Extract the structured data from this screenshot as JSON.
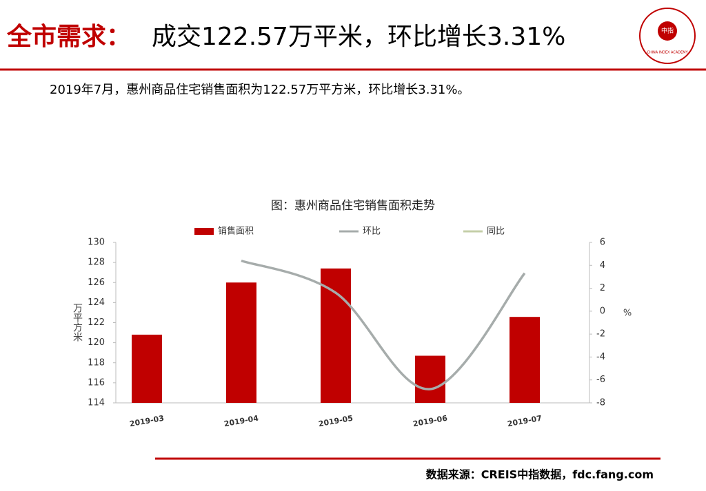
{
  "header": {
    "title_prefix": "全市需求：",
    "title_main": "成交122.57万平米，环比增长3.31%",
    "logo_text": "中指",
    "logo_caption": "CHINA INDEX ACADEMY"
  },
  "subtitle": "2019年7月，惠州商品住宅销售面积为122.57万平方米，环比增长3.31%。",
  "chart_data": {
    "type": "bar_line",
    "title": "图：惠州商品住宅销售面积走势",
    "categories": [
      "2019-03",
      "2019-04",
      "2019-05",
      "2019-06",
      "2019-07"
    ],
    "series": [
      {
        "name": "销售面积",
        "color": "#c00000",
        "type": "bar",
        "values": [
          120.8,
          126.0,
          127.4,
          118.7,
          122.57
        ]
      },
      {
        "name": "环比",
        "color": "#a6acab",
        "type": "line",
        "axis": "y2",
        "values": [
          null,
          4.4,
          1.6,
          -6.8,
          3.31
        ]
      },
      {
        "name": "同比",
        "color": "#c4cfa8",
        "type": "line",
        "axis": "y2",
        "values": [
          null,
          null,
          null,
          null,
          null
        ]
      }
    ],
    "ylabel": "万平方米",
    "y2label": "%",
    "ylim": [
      114,
      130
    ],
    "yticks": [
      114,
      116,
      118,
      120,
      122,
      124,
      126,
      128,
      130
    ],
    "y2lim": [
      -8,
      6
    ],
    "y2ticks": [
      -8,
      -6,
      -4,
      -2,
      0,
      2,
      4,
      6
    ],
    "legend": "top"
  },
  "footer": {
    "source": "数据来源：CREIS中指数据，fdc.fang.com"
  }
}
